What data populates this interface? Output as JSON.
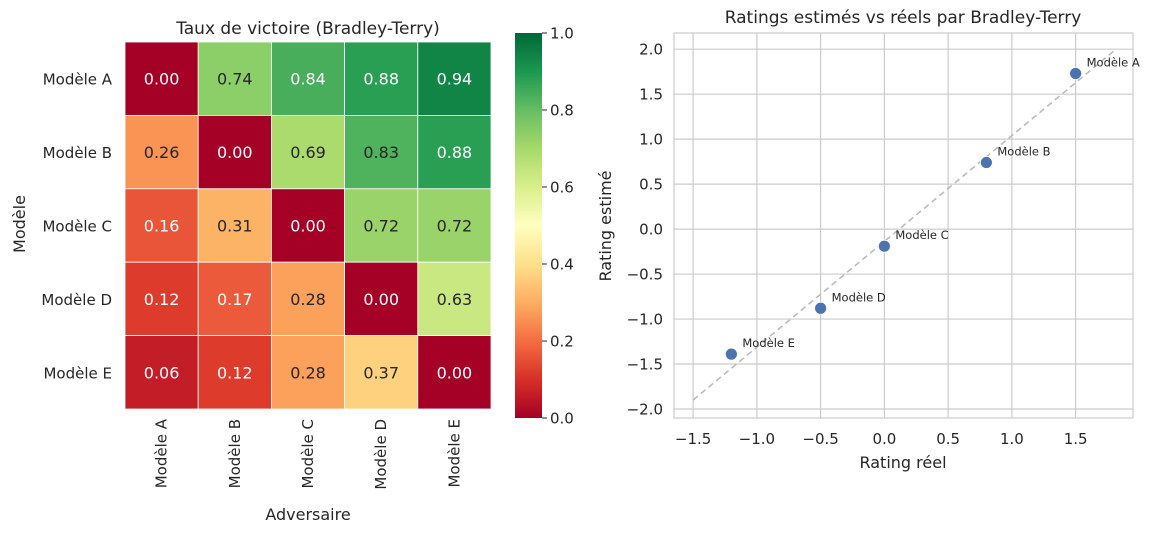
{
  "chart_data": [
    {
      "type": "heatmap",
      "title": "Taux de victoire (Bradley-Terry)",
      "xlabel": "Adversaire",
      "ylabel": "Modèle",
      "row_labels": [
        "Modèle A",
        "Modèle B",
        "Modèle C",
        "Modèle D",
        "Modèle E"
      ],
      "col_labels": [
        "Modèle A",
        "Modèle B",
        "Modèle C",
        "Modèle D",
        "Modèle E"
      ],
      "values": [
        [
          0.0,
          0.74,
          0.84,
          0.88,
          0.94
        ],
        [
          0.26,
          0.0,
          0.69,
          0.83,
          0.88
        ],
        [
          0.16,
          0.31,
          0.0,
          0.72,
          0.72
        ],
        [
          0.12,
          0.17,
          0.28,
          0.0,
          0.63
        ],
        [
          0.06,
          0.12,
          0.28,
          0.37,
          0.0
        ]
      ],
      "value_format": "0.00",
      "colormap": "RdYlGn",
      "colorbar": {
        "range": [
          0,
          1
        ],
        "ticks": [
          "0.0",
          "0.2",
          "0.4",
          "0.6",
          "0.8",
          "1.0"
        ]
      }
    },
    {
      "type": "scatter",
      "title": "Ratings estimés vs réels par Bradley-Terry",
      "xlabel": "Rating réel",
      "ylabel": "Rating estimé",
      "xlim": [
        -1.65,
        1.95
      ],
      "ylim": [
        -2.1,
        2.18
      ],
      "xticks": [
        -1.5,
        -1.0,
        -0.5,
        0.0,
        0.5,
        1.0,
        1.5
      ],
      "xtick_labels": [
        "−1.5",
        "−1.0",
        "−0.5",
        "0.0",
        "0.5",
        "1.0",
        "1.5"
      ],
      "yticks": [
        -2.0,
        -1.5,
        -1.0,
        -0.5,
        0.0,
        0.5,
        1.0,
        1.5,
        2.0
      ],
      "ytick_labels": [
        "−2.0",
        "−1.5",
        "−1.0",
        "−0.5",
        "0.0",
        "0.5",
        "1.0",
        "1.5",
        "2.0"
      ],
      "grid": true,
      "points": [
        {
          "label": "Modèle A",
          "x": 1.5,
          "y": 1.73
        },
        {
          "label": "Modèle B",
          "x": 0.8,
          "y": 0.74
        },
        {
          "label": "Modèle C",
          "x": 0.0,
          "y": -0.19
        },
        {
          "label": "Modèle D",
          "x": -0.5,
          "y": -0.88
        },
        {
          "label": "Modèle E",
          "x": -1.2,
          "y": -1.39
        }
      ],
      "reference_line": {
        "x": [
          -1.5,
          1.8
        ],
        "y": [
          -1.9,
          1.98
        ],
        "style": "dashed"
      },
      "point_color": "#4c72b0",
      "line_color": "#bbbbbb"
    }
  ]
}
